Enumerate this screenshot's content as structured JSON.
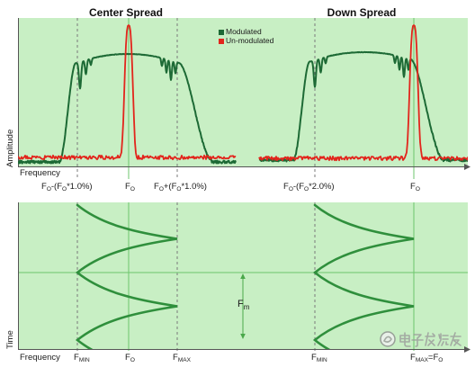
{
  "titles": {
    "center": "Center Spread",
    "down": "Down Spread"
  },
  "legend": {
    "modulated": "Modulated",
    "unmodulated": "Un-modulated"
  },
  "axes": {
    "amplitude": "Amplitude",
    "frequency_top": "Frequency",
    "time": "Time",
    "frequency_bottom": "Frequency"
  },
  "top_labels": {
    "center_low": [
      "F",
      "O",
      "-(F",
      "O",
      "*1.0%)"
    ],
    "center_fo": [
      "F",
      "O"
    ],
    "center_high": [
      "F",
      "O",
      "+(F",
      "O",
      "*1.0%)"
    ],
    "down_low": [
      "F",
      "O",
      "-(F",
      "O",
      "*2.0%)"
    ],
    "down_fo": [
      "F",
      "O"
    ]
  },
  "bottom_labels": {
    "center_fmin": [
      "F",
      "MIN"
    ],
    "center_fo": [
      "F",
      "O"
    ],
    "center_fmax": [
      "F",
      "MAX"
    ],
    "down_fmin": [
      "F",
      "MIN"
    ],
    "down_fmax": [
      "F",
      "MAX",
      "=F",
      "O"
    ]
  },
  "modulation_label": [
    "F",
    "m"
  ],
  "watermark": "电子发烧友",
  "colors": {
    "panel": "#c8efc4",
    "modulated": "#1d6a35",
    "unmodulated": "#e2251c",
    "sweep": "#2f8f3c",
    "arrow": "#4aa84a",
    "guide": "#6cc66c",
    "dashed": "#7a7a7a",
    "axis": "#555555"
  }
}
